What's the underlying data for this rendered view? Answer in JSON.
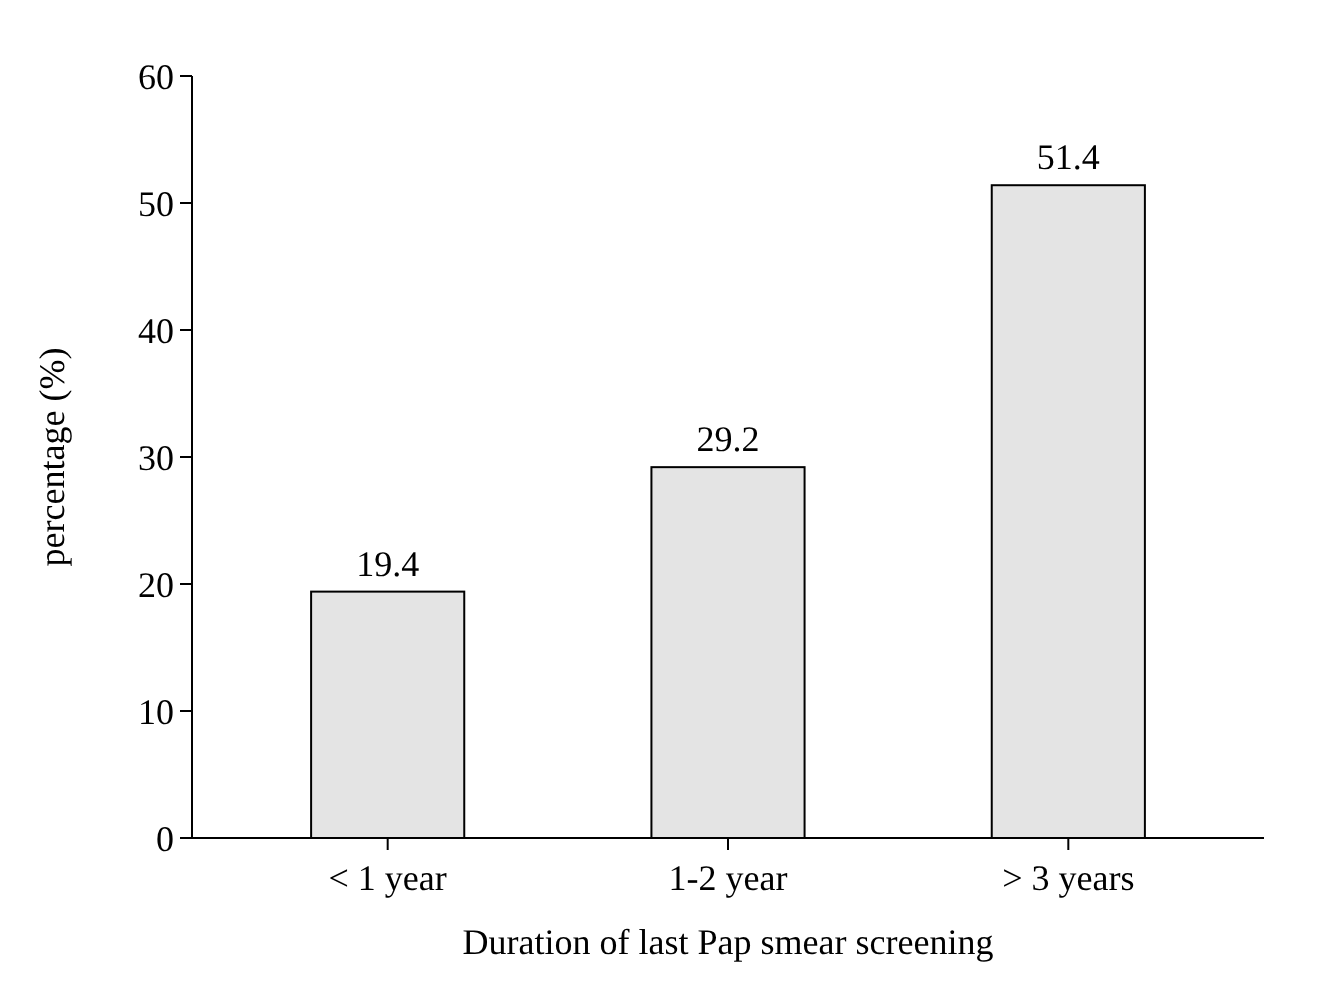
{
  "chart_data": {
    "type": "bar",
    "xlabel": "Duration of last Pap smear screening",
    "ylabel": "percentage (%)",
    "categories": [
      "< 1 year",
      "1-2 year",
      "> 3 years"
    ],
    "values": [
      19.4,
      29.2,
      51.4
    ],
    "color": "#e4e4e4",
    "ylim": [
      0,
      60
    ],
    "yticks": [
      0,
      10,
      20,
      30,
      40,
      50,
      60
    ],
    "data_labels": true,
    "grid": false
  }
}
